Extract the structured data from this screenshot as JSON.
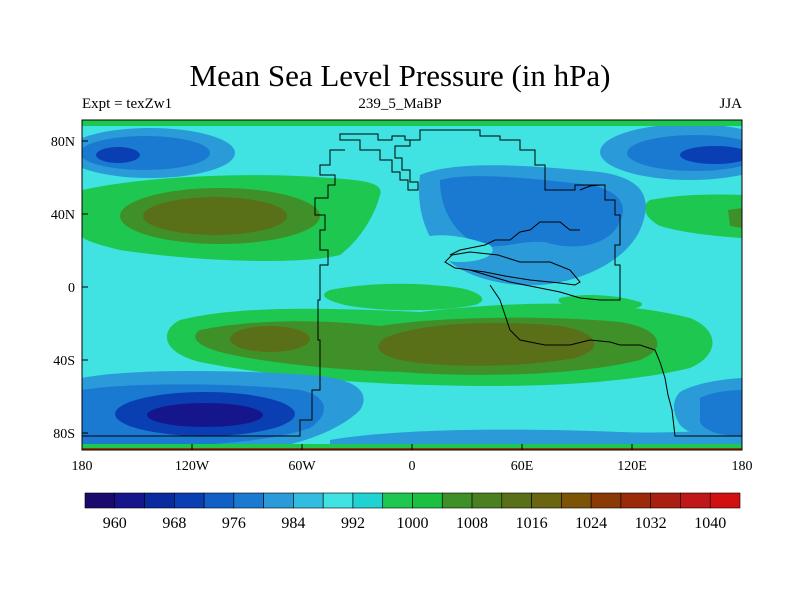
{
  "title": "Mean Sea Level Pressure (in hPa)",
  "left_label": "Expt = texZw1",
  "center_label": "239_5_MaBP",
  "right_label": "JJA",
  "lon_ticks": [
    "180",
    "120W",
    "60W",
    "0",
    "60E",
    "120E",
    "180"
  ],
  "lat_ticks": [
    "80N",
    "40N",
    "0",
    "40S",
    "80S"
  ],
  "colorbar": {
    "labels": [
      "960",
      "968",
      "976",
      "984",
      "992",
      "1000",
      "1008",
      "1016",
      "1024",
      "1032",
      "1040"
    ],
    "colors": [
      "#1a0a6e",
      "#16168c",
      "#0a2aa0",
      "#0a3fb4",
      "#1060c8",
      "#1a7ad2",
      "#2a9ad8",
      "#32bce0",
      "#40e2e2",
      "#20d2d2",
      "#1ec850",
      "#1cc040",
      "#40902a",
      "#4a8020",
      "#5a7018",
      "#6a6510",
      "#7c5408",
      "#8a3a05",
      "#9a2a08",
      "#aa2010",
      "#c01818",
      "#d21010"
    ]
  },
  "colors": {
    "deep_low": "#1a3fb4",
    "low": "#1060c8",
    "mid_low": "#2a9ad8",
    "cyan": "#40e2e2",
    "green": "#1ec850",
    "olive": "#40902a",
    "brown": "#5a7018"
  }
}
